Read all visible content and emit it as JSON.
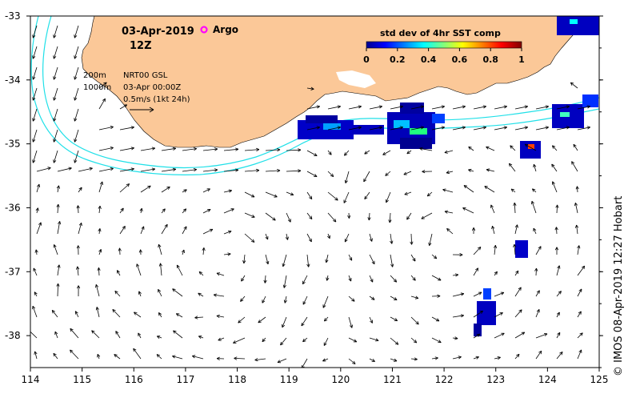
{
  "header": {
    "date": "03-Apr-2019",
    "hour": "12Z",
    "argo_label": "Argo"
  },
  "legend": {
    "contour_200": "200m",
    "contour_1000": "1000m",
    "product": "NRT00 GSL",
    "product_time": "03-Apr 00:00Z",
    "scale_label": "0.5m/s (1kt 24h)"
  },
  "colorbar": {
    "title": "std dev of 4hr SST comp",
    "ticks": [
      "0",
      "0.2",
      "0.4",
      "0.6",
      "0.8",
      "1"
    ]
  },
  "credit": "© IMOS 08-Apr-2019 12:27 Hobart",
  "axes": {
    "x_ticks": [
      "114",
      "115",
      "116",
      "117",
      "118",
      "119",
      "120",
      "121",
      "122",
      "123",
      "124",
      "125"
    ],
    "y_ticks": [
      "-33",
      "-34",
      "-35",
      "-36",
      "-37",
      "-38"
    ],
    "lon_range": [
      114,
      125
    ],
    "lat_range": [
      -38.5,
      -33
    ]
  },
  "colors": {
    "land": "#fbc898",
    "contour": "#20e0e8",
    "argo": "#ff00ff"
  }
}
